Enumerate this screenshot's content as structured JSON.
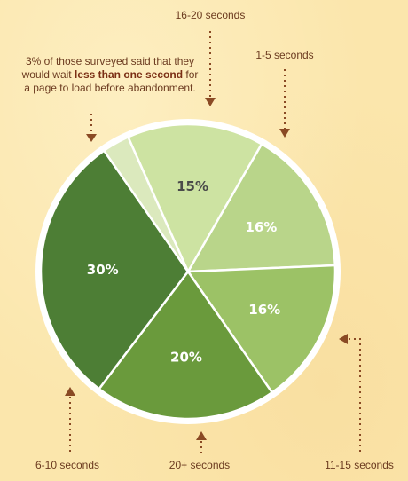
{
  "chart_data": {
    "type": "pie",
    "title": "",
    "slices": [
      {
        "label": "1-5 seconds",
        "value": 16,
        "value_label": "16%",
        "color": "#b9d58a",
        "text_color": "#ffffff"
      },
      {
        "label": "11-15 seconds",
        "value": 16,
        "value_label": "16%",
        "color": "#9cc266",
        "text_color": "#ffffff"
      },
      {
        "label": "20+ seconds",
        "value": 20,
        "value_label": "20%",
        "color": "#6a9a3c",
        "text_color": "#ffffff"
      },
      {
        "label": "6-10 seconds",
        "value": 30,
        "value_label": "30%",
        "color": "#4d7e35",
        "text_color": "#ffffff"
      },
      {
        "label": "",
        "value": 3,
        "value_label": "",
        "color": "#dbe9bd",
        "text_color": "#ffffff"
      },
      {
        "label": "16-20 seconds",
        "value": 15,
        "value_label": "15%",
        "color": "#cde3a2",
        "text_color": "#4a4a4a"
      }
    ],
    "annotation": {
      "text_before": "3% of those surveyed said that they would wait ",
      "text_bold": "less than one second",
      "text_after": " for a page to load before abandonment."
    },
    "colors": {
      "label_text": "#6b3a1f",
      "arrow": "#8a4a24",
      "border": "#ffffff"
    }
  }
}
